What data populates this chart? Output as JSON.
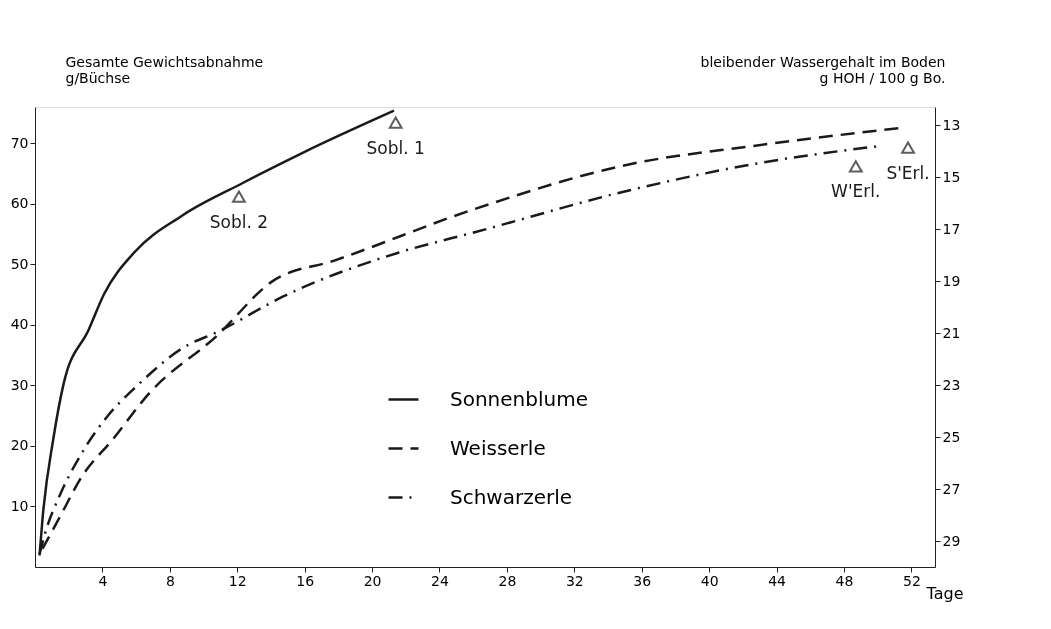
{
  "chart_data": {
    "type": "line",
    "xlabel": "Tage",
    "ylabel": "Gesamte Gewichtsabnahme\ng/Büchse",
    "y2label": "bleibender Wassergehalt im Boden\ng HOH / 100 g Bo.",
    "xlim": [
      0,
      53.4
    ],
    "xticks": [
      4,
      8,
      12,
      16,
      20,
      24,
      28,
      32,
      36,
      40,
      44,
      48,
      52
    ],
    "ylim": [
      0,
      76
    ],
    "yticks": [
      10,
      20,
      30,
      40,
      50,
      60,
      70
    ],
    "y2lim": [
      30,
      12.3
    ],
    "y2ticks": [
      13,
      15,
      17,
      19,
      21,
      23,
      25,
      27,
      29
    ],
    "grid": false,
    "legend": "bottom",
    "series": [
      {
        "name": "Sonnenblume",
        "color": "#1a1a1a",
        "line_style": "solid",
        "axis": "y",
        "x": [
          0.27,
          0.44,
          1.1,
          1.7,
          3.2,
          4.1,
          5.9,
          8.7,
          12.3,
          16,
          21.3
        ],
        "values": [
          1.9,
          7.8,
          21.4,
          30.3,
          39.3,
          45.1,
          52.0,
          58.0,
          63.4,
          68.6,
          75.4
        ]
      },
      {
        "name": "Weisserle",
        "color": "#1a1a1a",
        "line_style": "dashed",
        "axis": "y2",
        "x": [
          0.44,
          1.37,
          2.8,
          4.6,
          6.8,
          10.8,
          14.1,
          17.8,
          26.2,
          35.3,
          42.6,
          51.4
        ],
        "values": [
          29.3,
          28.2,
          26.5,
          25.1,
          23.3,
          21.1,
          19.0,
          18.2,
          16.2,
          14.5,
          13.8,
          13.1
        ]
      },
      {
        "name": "Schwarzerle",
        "color": "#1a1a1a",
        "line_style": "dashdot",
        "axis": "y2",
        "x": [
          0.27,
          0.6,
          1.5,
          2.7,
          4.3,
          6.1,
          8.7,
          11.0,
          14.7,
          21.6,
          26.2,
          35.3,
          42.6,
          50.1
        ],
        "values": [
          29.5,
          28.7,
          27.2,
          25.7,
          24.2,
          23.0,
          21.6,
          20.9,
          19.6,
          17.9,
          17.1,
          15.5,
          14.5,
          13.8
        ]
      }
    ],
    "annotations": [
      {
        "text": "Sobl. 1",
        "x": 21.4,
        "y": 73.4
      },
      {
        "text": "Sobl. 2",
        "x": 12.1,
        "y": 61.2
      },
      {
        "text": "W'Erl.",
        "x": 48.7,
        "y": 66.2
      },
      {
        "text": "S'Erl.",
        "x": 51.8,
        "y": 69.3
      }
    ]
  }
}
